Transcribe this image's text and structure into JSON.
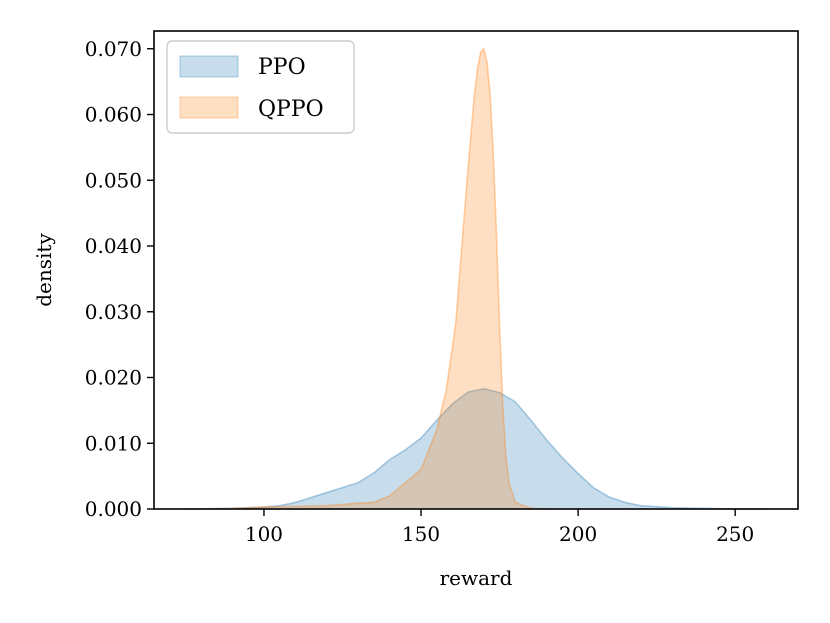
{
  "chart_data": {
    "type": "area",
    "title": "",
    "xlabel": "reward",
    "ylabel": "density",
    "xlim": [
      65,
      270
    ],
    "ylim": [
      0,
      0.0727
    ],
    "xticks": [
      100,
      150,
      200,
      250
    ],
    "xtick_labels": [
      "100",
      "150",
      "200",
      "250"
    ],
    "yticks": [
      0,
      0.01,
      0.02,
      0.03,
      0.04,
      0.05,
      0.06,
      0.07
    ],
    "ytick_labels": [
      "0.000",
      "0.010",
      "0.020",
      "0.030",
      "0.040",
      "0.050",
      "0.060",
      "0.070"
    ],
    "grid": false,
    "legend_position": "top-left",
    "series": [
      {
        "name": "PPO",
        "color": "#1f77b4",
        "x": [
          75,
          90,
          100,
          105,
          110,
          120,
          130,
          135,
          140,
          145,
          150,
          155,
          160,
          165,
          170,
          175,
          180,
          185,
          190,
          195,
          200,
          205,
          210,
          215,
          220,
          230,
          240,
          250,
          260
        ],
        "y": [
          0.0,
          0.0001,
          0.0003,
          0.0005,
          0.001,
          0.0025,
          0.004,
          0.0055,
          0.0075,
          0.009,
          0.0108,
          0.0135,
          0.016,
          0.0178,
          0.0183,
          0.0177,
          0.0163,
          0.0135,
          0.0105,
          0.0078,
          0.0054,
          0.0032,
          0.0018,
          0.001,
          0.0005,
          0.0002,
          0.0001,
          0.0,
          0.0
        ]
      },
      {
        "name": "QPPO",
        "color": "#ff7f0e",
        "x": [
          85,
          100,
          110,
          120,
          125,
          130,
          135,
          140,
          145,
          150,
          155,
          158,
          161,
          163,
          165,
          167,
          168,
          169,
          170,
          171,
          172,
          173,
          174,
          175,
          176,
          177,
          178,
          180,
          185,
          190
        ],
        "y": [
          0.0,
          0.0003,
          0.0004,
          0.0005,
          0.0007,
          0.0009,
          0.001,
          0.002,
          0.004,
          0.006,
          0.012,
          0.018,
          0.028,
          0.04,
          0.052,
          0.063,
          0.067,
          0.0695,
          0.07,
          0.068,
          0.063,
          0.054,
          0.042,
          0.028,
          0.016,
          0.008,
          0.004,
          0.001,
          0.0001,
          0.0
        ]
      }
    ]
  }
}
